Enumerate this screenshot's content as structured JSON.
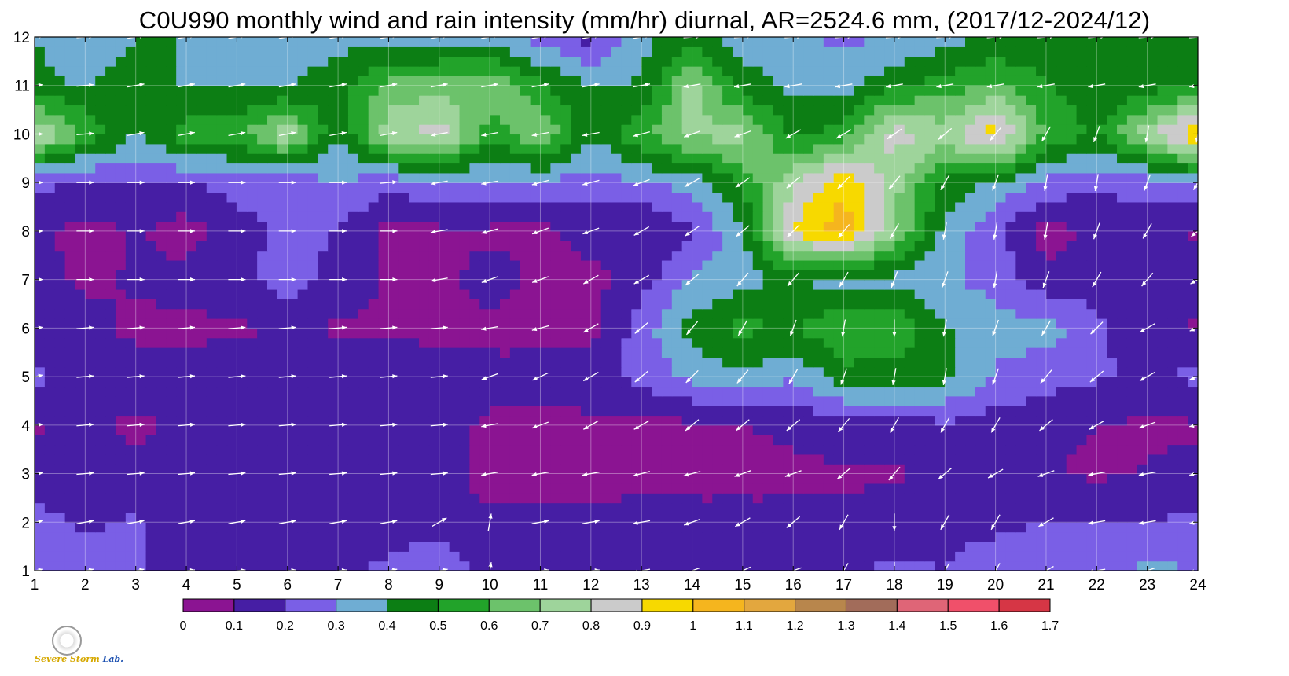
{
  "title": "C0U990 monthly wind and rain intensity (mm/hr) diurnal, AR=2524.6 mm, (2017/12-2024/12)",
  "logo": {
    "text_main": "Severe",
    "text_accent": "Storm",
    "text_tail": "Lab.",
    "icon": "seal-icon"
  },
  "chart_data": {
    "type": "contour",
    "title": "C0U990 monthly wind and rain intensity (mm/hr) diurnal, AR=2524.6 mm, (2017/12-2024/12)",
    "xlabel": "",
    "ylabel": "",
    "xlim": [
      1,
      24
    ],
    "ylim": [
      1,
      12
    ],
    "x_ticks": [
      "1",
      "2",
      "3",
      "4",
      "5",
      "6",
      "7",
      "8",
      "9",
      "10",
      "11",
      "12",
      "13",
      "14",
      "15",
      "16",
      "17",
      "18",
      "19",
      "20",
      "21",
      "22",
      "23",
      "24"
    ],
    "y_ticks": [
      "1",
      "2",
      "3",
      "4",
      "5",
      "6",
      "7",
      "8",
      "9",
      "10",
      "11",
      "12"
    ],
    "grid": true,
    "colorbar": {
      "levels": [
        "0",
        "0.1",
        "0.2",
        "0.3",
        "0.4",
        "0.5",
        "0.6",
        "0.7",
        "0.8",
        "0.9",
        "1",
        "1.1",
        "1.2",
        "1.3",
        "1.4",
        "1.5",
        "1.6",
        "1.7"
      ],
      "colors": [
        "#8b1492",
        "#461ea4",
        "#7a5fe6",
        "#6fadd3",
        "#0c7e14",
        "#22a32a",
        "#6cc26b",
        "#9ed49b",
        "#cbcbcb",
        "#f7d900",
        "#f5b51e",
        "#e3a73e",
        "#b8864c",
        "#a26c5a",
        "#df6577",
        "#f0506a",
        "#d63645"
      ]
    },
    "rain_rows": [
      [
        0.26,
        0.22,
        0.21,
        0.16,
        0.18,
        0.15,
        0.17,
        0.23,
        0.28,
        0.17,
        0.16,
        0.18,
        0.15,
        0.14,
        0.17,
        0.17,
        0.2,
        0.21,
        0.2,
        0.22,
        0.25,
        0.27,
        0.32,
        0.3
      ],
      [
        0.23,
        0.19,
        0.21,
        0.17,
        0.15,
        0.15,
        0.15,
        0.14,
        0.15,
        0.12,
        0.14,
        0.12,
        0.16,
        0.14,
        0.13,
        0.12,
        0.13,
        0.14,
        0.19,
        0.19,
        0.2,
        0.21,
        0.2,
        0.22
      ],
      [
        0.15,
        0.14,
        0.13,
        0.11,
        0.14,
        0.14,
        0.14,
        0.12,
        0.14,
        0.06,
        0.05,
        0.06,
        0.05,
        0.06,
        0.07,
        0.08,
        0.08,
        0.09,
        0.11,
        0.12,
        0.11,
        0.08,
        0.11,
        0.12
      ],
      [
        0.09,
        0.12,
        0.08,
        0.13,
        0.15,
        0.14,
        0.14,
        0.15,
        0.14,
        0.08,
        0.07,
        0.08,
        0.06,
        0.08,
        0.1,
        0.12,
        0.16,
        0.15,
        0.18,
        0.15,
        0.12,
        0.1,
        0.08,
        0.09
      ],
      [
        0.22,
        0.15,
        0.14,
        0.15,
        0.16,
        0.17,
        0.16,
        0.17,
        0.15,
        0.14,
        0.14,
        0.15,
        0.24,
        0.32,
        0.38,
        0.31,
        0.45,
        0.46,
        0.43,
        0.29,
        0.24,
        0.21,
        0.19,
        0.22
      ],
      [
        0.16,
        0.13,
        0.08,
        0.07,
        0.09,
        0.1,
        0.09,
        0.08,
        0.07,
        0.06,
        0.06,
        0.07,
        0.25,
        0.44,
        0.53,
        0.48,
        0.62,
        0.58,
        0.41,
        0.33,
        0.35,
        0.22,
        0.14,
        0.09
      ],
      [
        0.14,
        0.08,
        0.11,
        0.14,
        0.16,
        0.26,
        0.15,
        0.09,
        0.06,
        0.15,
        0.08,
        0.07,
        0.16,
        0.31,
        0.36,
        0.42,
        0.34,
        0.37,
        0.31,
        0.27,
        0.13,
        0.16,
        0.16,
        0.13
      ],
      [
        0.12,
        0.06,
        0.11,
        0.05,
        0.16,
        0.23,
        0.2,
        0.07,
        0.08,
        0.08,
        0.07,
        0.14,
        0.09,
        0.19,
        0.38,
        0.92,
        1.05,
        0.72,
        0.36,
        0.22,
        0.06,
        0.11,
        0.13,
        0.09
      ],
      [
        0.23,
        0.19,
        0.2,
        0.2,
        0.24,
        0.23,
        0.3,
        0.23,
        0.28,
        0.28,
        0.28,
        0.26,
        0.29,
        0.34,
        0.53,
        0.78,
        1.0,
        0.73,
        0.47,
        0.39,
        0.27,
        0.22,
        0.25,
        0.3
      ],
      [
        0.83,
        0.58,
        0.4,
        0.55,
        0.58,
        0.78,
        0.4,
        0.77,
        0.86,
        0.54,
        0.72,
        0.4,
        0.58,
        0.73,
        0.74,
        0.46,
        0.55,
        0.85,
        0.75,
        0.96,
        0.59,
        0.48,
        0.77,
        1.02
      ],
      [
        0.44,
        0.39,
        0.48,
        0.39,
        0.4,
        0.39,
        0.45,
        0.63,
        0.65,
        0.7,
        0.52,
        0.4,
        0.41,
        0.74,
        0.45,
        0.38,
        0.36,
        0.48,
        0.55,
        0.62,
        0.52,
        0.42,
        0.46,
        0.47
      ],
      [
        0.4,
        0.3,
        0.4,
        0.4,
        0.33,
        0.34,
        0.37,
        0.35,
        0.35,
        0.36,
        0.25,
        0.16,
        0.37,
        0.43,
        0.35,
        0.31,
        0.28,
        0.3,
        0.36,
        0.4,
        0.41,
        0.4,
        0.43,
        0.45
      ]
    ],
    "wind_angle_deg": [
      [
        10,
        10,
        10,
        5,
        5,
        5,
        5,
        10,
        10,
        80,
        5,
        5,
        -170,
        -160,
        -155,
        -160,
        -120,
        -90,
        -120,
        -120,
        -150,
        -170,
        -160,
        -170
      ],
      [
        10,
        10,
        10,
        10,
        10,
        10,
        10,
        10,
        30,
        80,
        10,
        10,
        -170,
        -160,
        -150,
        -140,
        -120,
        -90,
        -120,
        -120,
        -150,
        -170,
        -170,
        -170
      ],
      [
        5,
        5,
        5,
        5,
        5,
        5,
        5,
        5,
        5,
        -170,
        -170,
        -170,
        -165,
        -165,
        -160,
        -160,
        -140,
        -130,
        -140,
        -150,
        -160,
        -170,
        -170,
        -170
      ],
      [
        5,
        5,
        5,
        5,
        5,
        5,
        5,
        5,
        5,
        -170,
        -160,
        -150,
        -150,
        -140,
        -140,
        -140,
        -130,
        -120,
        -120,
        -120,
        -140,
        -150,
        -160,
        -170
      ],
      [
        10,
        5,
        5,
        5,
        5,
        5,
        5,
        5,
        5,
        -160,
        -155,
        -150,
        -140,
        -135,
        -130,
        -120,
        -110,
        -100,
        -100,
        -110,
        -130,
        -140,
        -150,
        -160
      ],
      [
        5,
        5,
        5,
        5,
        5,
        5,
        5,
        5,
        5,
        -170,
        -165,
        -150,
        -140,
        -130,
        -120,
        -110,
        -100,
        -90,
        -100,
        -110,
        -120,
        -135,
        -150,
        -160
      ],
      [
        0,
        0,
        0,
        0,
        0,
        0,
        0,
        0,
        -170,
        -160,
        -160,
        -150,
        -150,
        -140,
        -130,
        -130,
        -120,
        -110,
        -110,
        -100,
        -110,
        -120,
        -130,
        -150
      ],
      [
        0,
        0,
        0,
        0,
        0,
        0,
        0,
        0,
        -170,
        -165,
        -160,
        -160,
        -150,
        -145,
        -140,
        -135,
        -130,
        -120,
        -100,
        -100,
        -100,
        -110,
        -120,
        -140
      ],
      [
        0,
        0,
        0,
        0,
        0,
        0,
        0,
        5,
        -170,
        -170,
        -165,
        -165,
        -160,
        -150,
        -145,
        -140,
        -135,
        -130,
        -120,
        -110,
        -100,
        -100,
        -110,
        -120
      ],
      [
        0,
        5,
        10,
        10,
        10,
        10,
        10,
        10,
        -170,
        -170,
        -170,
        -170,
        -165,
        -160,
        -160,
        -150,
        -150,
        -145,
        -140,
        -130,
        -120,
        -110,
        -100,
        -100
      ],
      [
        5,
        5,
        10,
        10,
        10,
        10,
        10,
        10,
        10,
        10,
        10,
        10,
        10,
        -170,
        -170,
        -170,
        -170,
        -170,
        -170,
        -170,
        -170,
        -170,
        -170,
        -170
      ],
      [
        5,
        5,
        10,
        10,
        10,
        10,
        10,
        10,
        10,
        10,
        10,
        10,
        10,
        5,
        5,
        5,
        5,
        5,
        5,
        5,
        5,
        5,
        5,
        5
      ]
    ]
  }
}
